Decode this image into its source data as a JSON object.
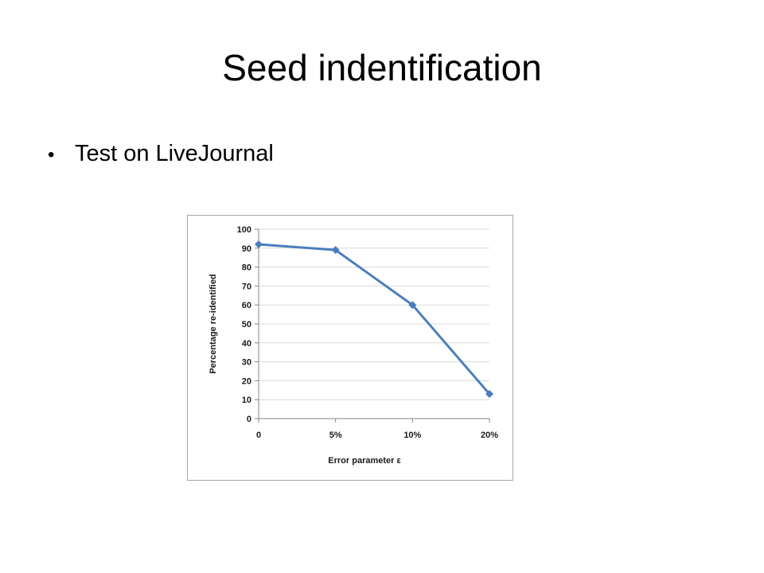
{
  "slide": {
    "title": "Seed indentification",
    "bullets": [
      "Test on LiveJournal"
    ],
    "bullet_symbol": "•"
  },
  "chart_data": {
    "type": "line",
    "categories": [
      "0",
      "5%",
      "10%",
      "20%"
    ],
    "series": [
      {
        "values": [
          92,
          89,
          60,
          13
        ],
        "color": "#4a7ebb"
      }
    ],
    "xlabel": "Error parameter ε",
    "ylabel": "Percentage re-identified",
    "ylim": [
      0,
      100
    ],
    "yticks": [
      "0",
      "10",
      "20",
      "30",
      "40",
      "50",
      "60",
      "70",
      "80",
      "90",
      "100"
    ],
    "grid": true,
    "marker": "diamond",
    "legend": "none"
  }
}
